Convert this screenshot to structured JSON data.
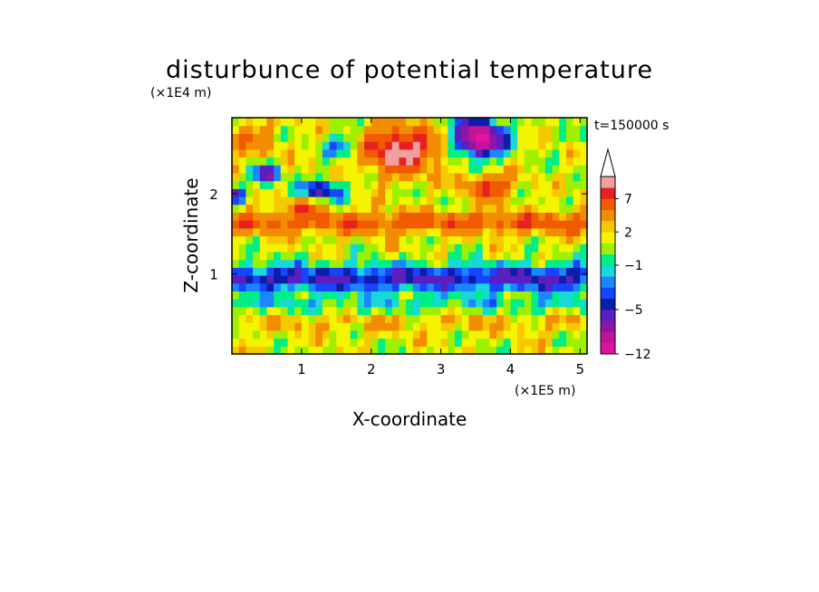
{
  "chart_data": {
    "type": "heatmap",
    "title": "disturbunce of potential temperature",
    "xlabel": "X-coordinate",
    "ylabel": "Z-coordinate",
    "x_unit": "(×1E5 m)",
    "y_unit": "(×1E4 m)",
    "time_label": "t=150000 s",
    "xlim": [
      0,
      5.1
    ],
    "ylim": [
      0,
      2.95
    ],
    "x_ticks": [
      1,
      2,
      3,
      4,
      5
    ],
    "y_ticks": [
      1,
      2
    ],
    "colorbar": {
      "levels": [
        -12,
        -11,
        -9,
        -7,
        -5,
        -4,
        -3,
        -2,
        -1,
        0,
        1,
        2,
        3,
        5,
        7,
        9,
        11
      ],
      "labeled_ticks": [
        {
          "label": "−12",
          "value": -12
        },
        {
          "label": "−5",
          "value": -5
        },
        {
          "label": "−1",
          "value": -1
        },
        {
          "label": "2",
          "value": 2
        },
        {
          "label": "7",
          "value": 7
        }
      ],
      "colors": [
        "#e0139f",
        "#c0149a",
        "#8c16a6",
        "#5a1fbe",
        "#0a1eaa",
        "#1545ff",
        "#1c86ff",
        "#18d8d8",
        "#00ee88",
        "#9ef000",
        "#f4f400",
        "#f6c800",
        "#f28c00",
        "#f25a00",
        "#e82020",
        "#f0a0a0"
      ],
      "extend_max": true
    },
    "z_field": {
      "grid_cols": 51,
      "grid_rows": 30,
      "value_range": [
        -12,
        11
      ],
      "description_free": true
    }
  }
}
